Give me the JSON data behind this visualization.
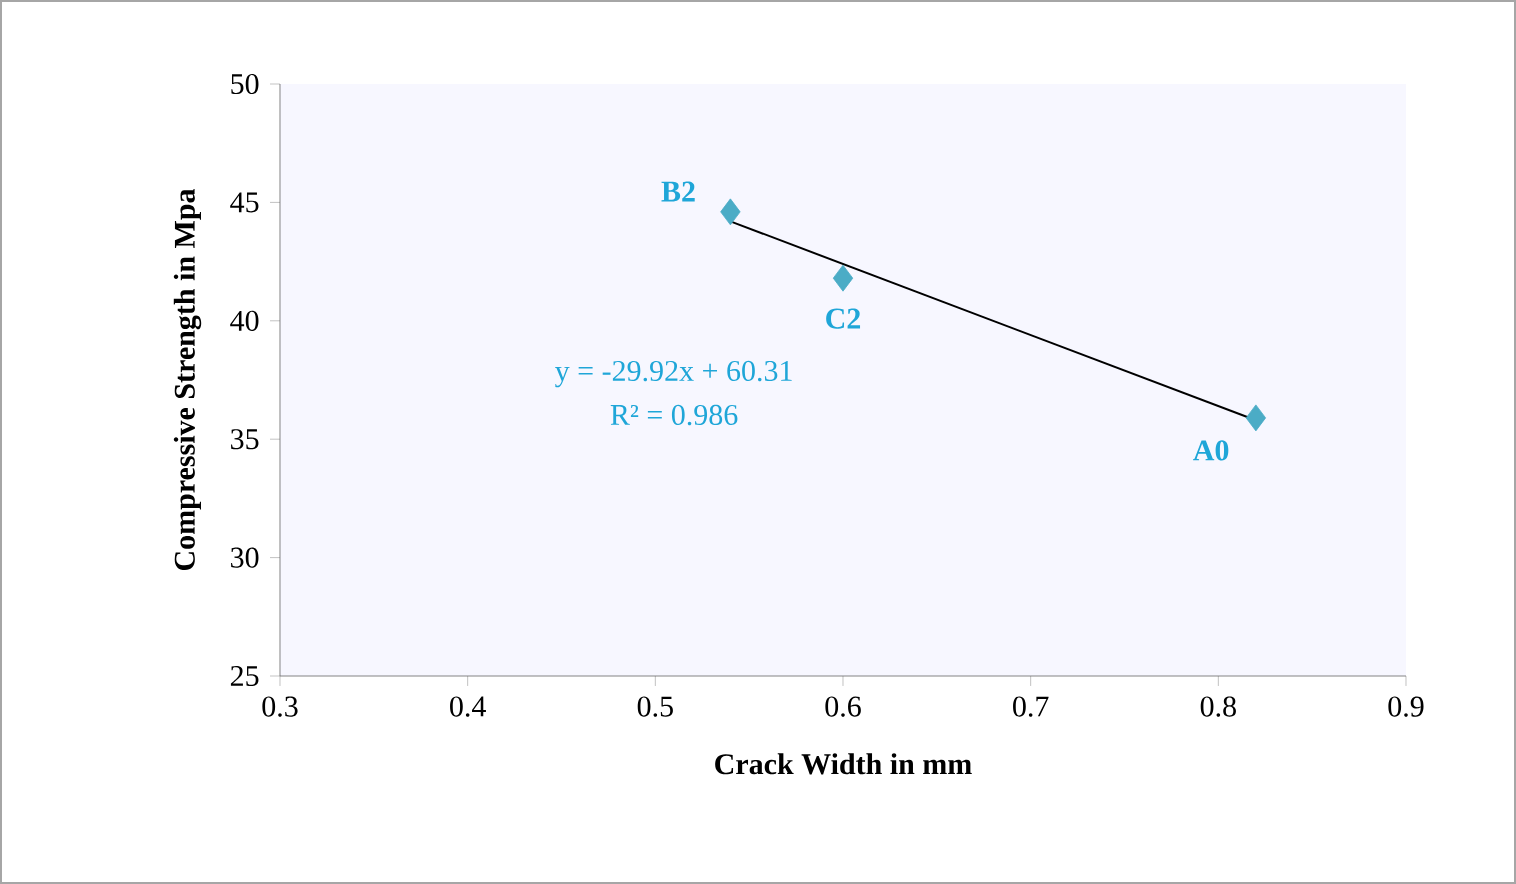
{
  "chart_data": {
    "type": "scatter",
    "xlabel": "Crack Width in mm",
    "ylabel": "Compressive Strength in Mpa",
    "xlim": [
      0.3,
      0.9
    ],
    "xticks": [
      0.3,
      0.4,
      0.5,
      0.6,
      0.7,
      0.8,
      0.9
    ],
    "ylim": [
      25,
      50
    ],
    "yticks": [
      25,
      30,
      35,
      40,
      45,
      50
    ],
    "grid": false,
    "series": [
      {
        "marker": "diamond",
        "color": "#4bacc6",
        "x": [
          0.54,
          0.6,
          0.82
        ],
        "values": [
          44.6,
          41.8,
          35.9
        ]
      },
      {
        "type": "line",
        "color": "#000000",
        "x": [
          0.54,
          0.82
        ],
        "values": [
          44.2,
          35.8
        ]
      }
    ],
    "annotations": [
      {
        "text": "B2",
        "x": 0.54,
        "y": 44.6
      },
      {
        "text": "C2",
        "x": 0.6,
        "y": 41.8
      },
      {
        "text": "A0",
        "x": 0.82,
        "y": 35.9
      },
      "y = -29.92x + 60.31",
      "R² = 0.986"
    ]
  }
}
